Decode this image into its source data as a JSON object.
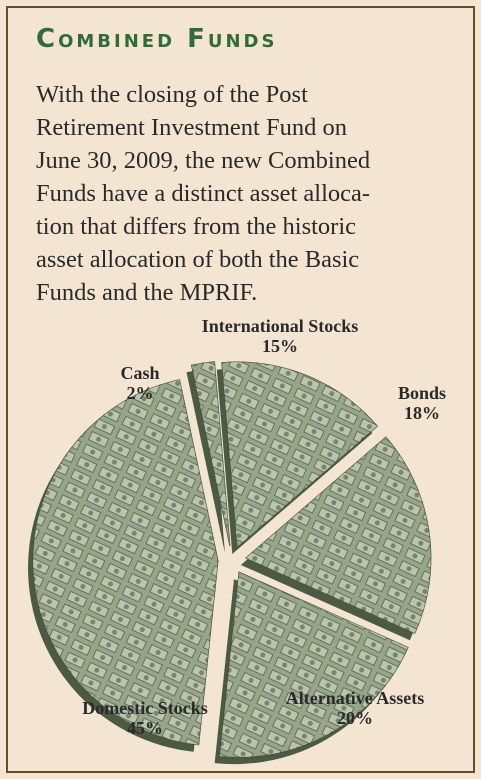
{
  "title": "Combined Funds",
  "body_lines": [
    "With the closing of the Post",
    "Retirement Investment Fund on",
    "June 30, 2009, the new Combined",
    "Funds have a distinct asset alloca-",
    "tion that differs from the historic",
    "asset allocation of  both the Basic",
    "Funds and the MPRIF."
  ],
  "chart_data": {
    "type": "pie",
    "categories": [
      "Cash",
      "International Stocks",
      "Bonds",
      "Alternative Assets",
      "Domestic Stocks"
    ],
    "values": [
      2,
      15,
      18,
      20,
      45
    ],
    "value_labels": [
      "2%",
      "15%",
      "18%",
      "20%",
      "45%"
    ],
    "color": "#8d9c80"
  }
}
